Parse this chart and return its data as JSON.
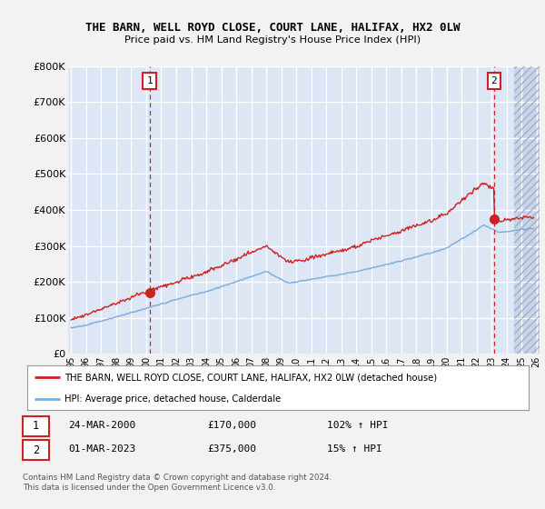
{
  "title": "THE BARN, WELL ROYD CLOSE, COURT LANE, HALIFAX, HX2 0LW",
  "subtitle": "Price paid vs. HM Land Registry's House Price Index (HPI)",
  "ylim": [
    0,
    800000
  ],
  "yticks": [
    0,
    100000,
    200000,
    300000,
    400000,
    500000,
    600000,
    700000,
    800000
  ],
  "ytick_labels": [
    "£0",
    "£100K",
    "£200K",
    "£300K",
    "£400K",
    "£500K",
    "£600K",
    "£700K",
    "£800K"
  ],
  "plot_bg_color": "#dce6f5",
  "fig_bg_color": "#f2f2f2",
  "grid_color": "#ffffff",
  "red_line_color": "#cc2222",
  "blue_line_color": "#7aaddb",
  "sale1_year": 2000.23,
  "sale1_price": 170000,
  "sale2_year": 2023.17,
  "sale2_price": 375000,
  "legend_line1": "THE BARN, WELL ROYD CLOSE, COURT LANE, HALIFAX, HX2 0LW (detached house)",
  "legend_line2": "HPI: Average price, detached house, Calderdale",
  "table_row1_num": "1",
  "table_row1_date": "24-MAR-2000",
  "table_row1_price": "£170,000",
  "table_row1_hpi": "102% ↑ HPI",
  "table_row2_num": "2",
  "table_row2_date": "01-MAR-2023",
  "table_row2_price": "£375,000",
  "table_row2_hpi": "15% ↑ HPI",
  "footnote1": "Contains HM Land Registry data © Crown copyright and database right 2024.",
  "footnote2": "This data is licensed under the Open Government Licence v3.0.",
  "xmin": 1994.8,
  "xmax": 2026.2,
  "xtick_years": [
    1995,
    1996,
    1997,
    1998,
    1999,
    2000,
    2001,
    2002,
    2003,
    2004,
    2005,
    2006,
    2007,
    2008,
    2009,
    2010,
    2011,
    2012,
    2013,
    2014,
    2015,
    2016,
    2017,
    2018,
    2019,
    2020,
    2021,
    2022,
    2023,
    2024,
    2025,
    2026
  ],
  "hatch_start": 2024.5
}
